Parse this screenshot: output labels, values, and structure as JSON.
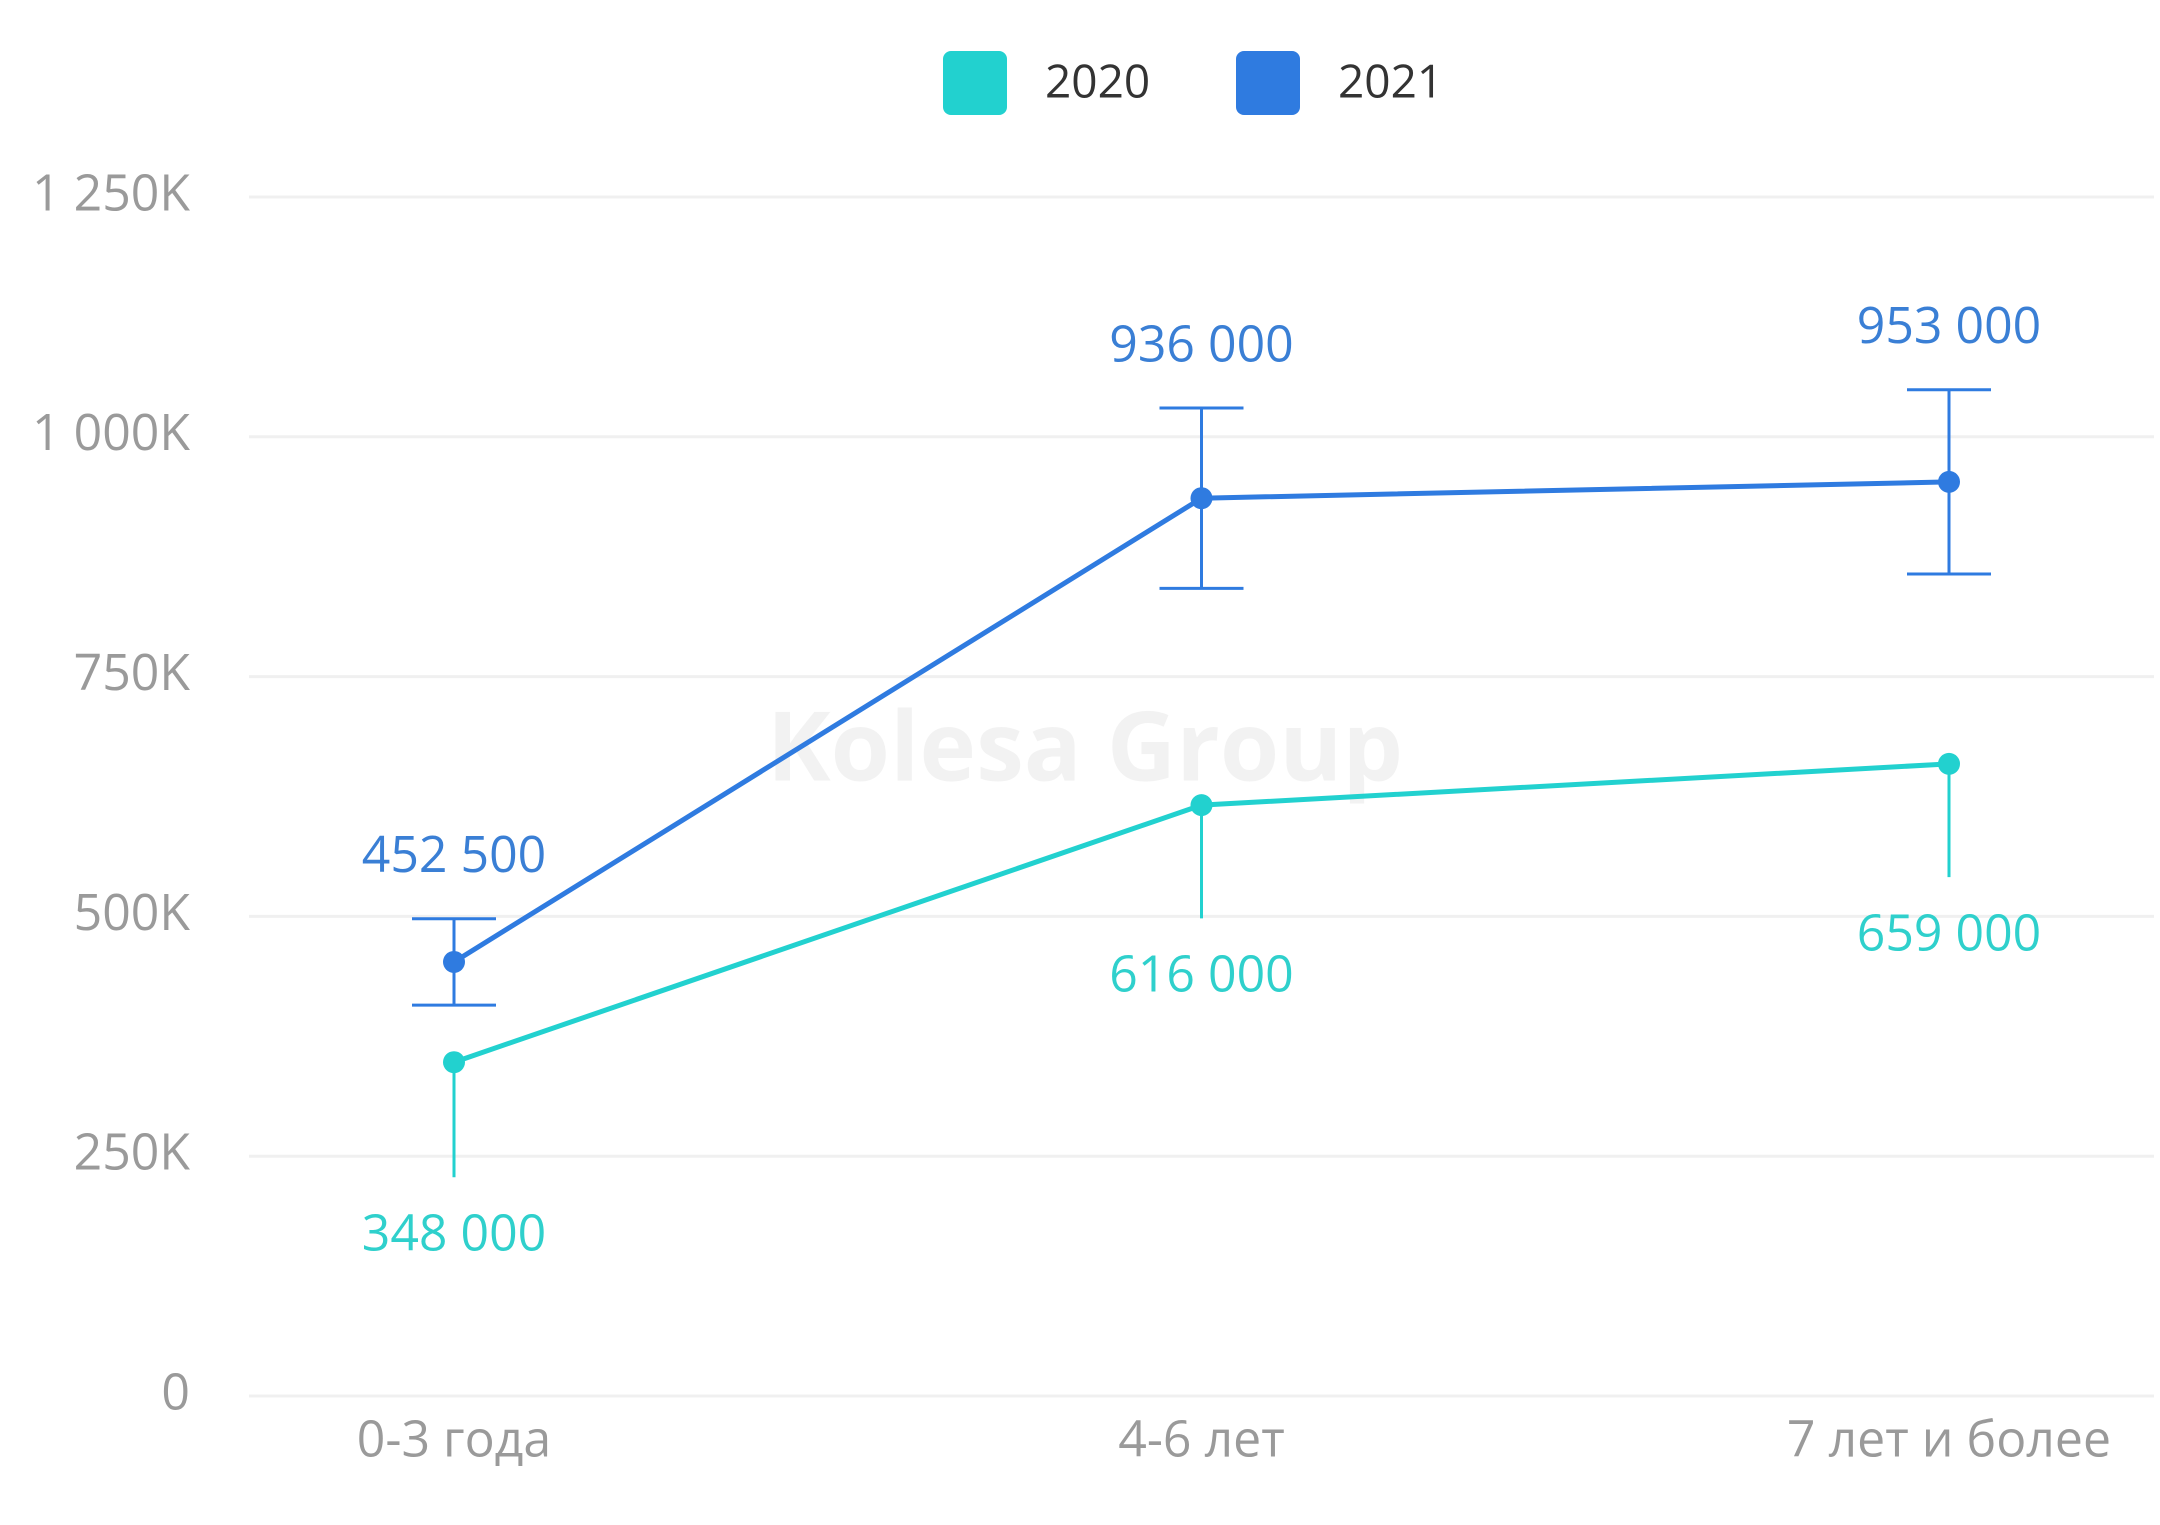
{
  "chart_data": {
    "type": "line",
    "watermark": "Kolesa Group",
    "categories": [
      "0-3 года",
      "4-6 лет",
      "7 лет и более"
    ],
    "series": [
      {
        "name": "2020",
        "color": "#22d1cf",
        "label_color": "#2fd0cc",
        "values": [
          348000,
          616000,
          659000
        ],
        "value_labels": [
          "348 000",
          "616 000",
          "659 000"
        ],
        "errors": [
          120000,
          118000,
          118000
        ],
        "error_side": "lower",
        "error_caps": false,
        "label_position": "below"
      },
      {
        "name": "2021",
        "color": "#2f7be0",
        "label_color": "#3a7fd5",
        "values": [
          452500,
          936000,
          953000
        ],
        "value_labels": [
          "452 500",
          "936 000",
          "953 000"
        ],
        "errors": [
          45000,
          94000,
          96000
        ],
        "error_side": "both",
        "error_caps": true,
        "label_position": "above"
      }
    ],
    "ylim": [
      0,
      1250000
    ],
    "yticks": [
      0,
      {
        "value": 250000,
        "label": "250K"
      },
      {
        "value": 500000,
        "label": "500K"
      },
      {
        "value": 750000,
        "label": "750K"
      },
      {
        "value": 1000000,
        "label": "1 000K"
      },
      {
        "value": 1250000,
        "label": "1 250K"
      }
    ],
    "grid": true,
    "legend": "top"
  }
}
